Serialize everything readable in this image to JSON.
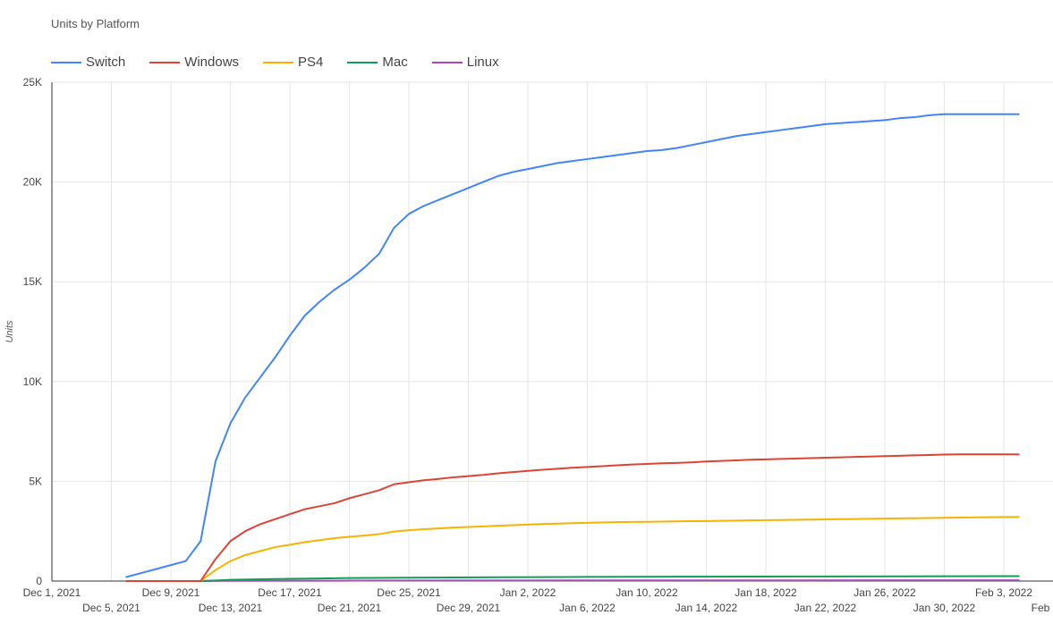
{
  "chart_data": {
    "type": "line",
    "title": "Units by Platform",
    "ylabel": "Units",
    "xlabel": "",
    "ylim": [
      0,
      25000
    ],
    "yticks": [
      0,
      5000,
      10000,
      15000,
      20000,
      25000
    ],
    "ytick_labels": [
      "0",
      "5K",
      "10K",
      "15K",
      "20K",
      "25K"
    ],
    "xlim": [
      "2021-12-01",
      "2022-02-07"
    ],
    "xticks_upper": [
      {
        "date": "2021-12-01",
        "label": "Dec 1, 2021"
      },
      {
        "date": "2021-12-09",
        "label": "Dec 9, 2021"
      },
      {
        "date": "2021-12-17",
        "label": "Dec 17, 2021"
      },
      {
        "date": "2021-12-25",
        "label": "Dec 25, 2021"
      },
      {
        "date": "2022-01-02",
        "label": "Jan 2, 2022"
      },
      {
        "date": "2022-01-10",
        "label": "Jan 10, 2022"
      },
      {
        "date": "2022-01-18",
        "label": "Jan 18, 2022"
      },
      {
        "date": "2022-01-26",
        "label": "Jan 26, 2022"
      },
      {
        "date": "2022-02-03",
        "label": "Feb 3, 2022"
      }
    ],
    "xticks_lower": [
      {
        "date": "2021-12-05",
        "label": "Dec 5, 2021"
      },
      {
        "date": "2021-12-13",
        "label": "Dec 13, 2021"
      },
      {
        "date": "2021-12-21",
        "label": "Dec 21, 2021"
      },
      {
        "date": "2021-12-29",
        "label": "Dec 29, 2021"
      },
      {
        "date": "2022-01-06",
        "label": "Jan 6, 2022"
      },
      {
        "date": "2022-01-14",
        "label": "Jan 14, 2022"
      },
      {
        "date": "2022-01-22",
        "label": "Jan 22, 2022"
      },
      {
        "date": "2022-01-30",
        "label": "Jan 30, 2022"
      },
      {
        "date": "2022-02-07",
        "label": "Feb"
      }
    ],
    "grid": true,
    "legend_position": "top-left",
    "series": [
      {
        "name": "Switch",
        "color": "#4285f4",
        "points": [
          [
            "2021-12-06",
            200
          ],
          [
            "2021-12-07",
            400
          ],
          [
            "2021-12-08",
            600
          ],
          [
            "2021-12-09",
            800
          ],
          [
            "2021-12-10",
            1000
          ],
          [
            "2021-12-11",
            2000
          ],
          [
            "2021-12-12",
            6000
          ],
          [
            "2021-12-13",
            7900
          ],
          [
            "2021-12-14",
            9200
          ],
          [
            "2021-12-15",
            10200
          ],
          [
            "2021-12-16",
            11200
          ],
          [
            "2021-12-17",
            12300
          ],
          [
            "2021-12-18",
            13300
          ],
          [
            "2021-12-19",
            14000
          ],
          [
            "2021-12-20",
            14600
          ],
          [
            "2021-12-21",
            15100
          ],
          [
            "2021-12-22",
            15700
          ],
          [
            "2021-12-23",
            16400
          ],
          [
            "2021-12-24",
            17700
          ],
          [
            "2021-12-25",
            18400
          ],
          [
            "2021-12-26",
            18800
          ],
          [
            "2021-12-27",
            19100
          ],
          [
            "2021-12-28",
            19400
          ],
          [
            "2021-12-29",
            19700
          ],
          [
            "2021-12-30",
            20000
          ],
          [
            "2021-12-31",
            20300
          ],
          [
            "2022-01-01",
            20500
          ],
          [
            "2022-01-02",
            20650
          ],
          [
            "2022-01-03",
            20800
          ],
          [
            "2022-01-04",
            20950
          ],
          [
            "2022-01-05",
            21050
          ],
          [
            "2022-01-06",
            21150
          ],
          [
            "2022-01-07",
            21250
          ],
          [
            "2022-01-08",
            21350
          ],
          [
            "2022-01-09",
            21450
          ],
          [
            "2022-01-10",
            21550
          ],
          [
            "2022-01-11",
            21600
          ],
          [
            "2022-01-12",
            21700
          ],
          [
            "2022-01-13",
            21850
          ],
          [
            "2022-01-14",
            22000
          ],
          [
            "2022-01-15",
            22150
          ],
          [
            "2022-01-16",
            22300
          ],
          [
            "2022-01-17",
            22400
          ],
          [
            "2022-01-18",
            22500
          ],
          [
            "2022-01-19",
            22600
          ],
          [
            "2022-01-20",
            22700
          ],
          [
            "2022-01-21",
            22800
          ],
          [
            "2022-01-22",
            22900
          ],
          [
            "2022-01-23",
            22950
          ],
          [
            "2022-01-24",
            23000
          ],
          [
            "2022-01-25",
            23050
          ],
          [
            "2022-01-26",
            23100
          ],
          [
            "2022-01-27",
            23200
          ],
          [
            "2022-01-28",
            23250
          ],
          [
            "2022-01-29",
            23350
          ],
          [
            "2022-01-30",
            23400
          ],
          [
            "2022-01-31",
            23400
          ],
          [
            "2022-02-01",
            23400
          ],
          [
            "2022-02-02",
            23400
          ],
          [
            "2022-02-03",
            23400
          ],
          [
            "2022-02-04",
            23400
          ]
        ]
      },
      {
        "name": "Windows",
        "color": "#db4437",
        "points": [
          [
            "2021-12-06",
            0
          ],
          [
            "2021-12-07",
            0
          ],
          [
            "2021-12-08",
            0
          ],
          [
            "2021-12-09",
            0
          ],
          [
            "2021-12-10",
            0
          ],
          [
            "2021-12-11",
            0
          ],
          [
            "2021-12-12",
            1100
          ],
          [
            "2021-12-13",
            2000
          ],
          [
            "2021-12-14",
            2500
          ],
          [
            "2021-12-15",
            2850
          ],
          [
            "2021-12-16",
            3100
          ],
          [
            "2021-12-17",
            3350
          ],
          [
            "2021-12-18",
            3600
          ],
          [
            "2021-12-19",
            3750
          ],
          [
            "2021-12-20",
            3900
          ],
          [
            "2021-12-21",
            4150
          ],
          [
            "2021-12-22",
            4350
          ],
          [
            "2021-12-23",
            4550
          ],
          [
            "2021-12-24",
            4850
          ],
          [
            "2021-12-25",
            4950
          ],
          [
            "2021-12-26",
            5050
          ],
          [
            "2021-12-27",
            5120
          ],
          [
            "2021-12-28",
            5200
          ],
          [
            "2021-12-29",
            5260
          ],
          [
            "2021-12-30",
            5320
          ],
          [
            "2021-12-31",
            5400
          ],
          [
            "2022-01-01",
            5460
          ],
          [
            "2022-01-02",
            5520
          ],
          [
            "2022-01-03",
            5580
          ],
          [
            "2022-01-04",
            5630
          ],
          [
            "2022-01-05",
            5680
          ],
          [
            "2022-01-06",
            5720
          ],
          [
            "2022-01-07",
            5760
          ],
          [
            "2022-01-08",
            5800
          ],
          [
            "2022-01-09",
            5840
          ],
          [
            "2022-01-10",
            5870
          ],
          [
            "2022-01-11",
            5900
          ],
          [
            "2022-01-12",
            5920
          ],
          [
            "2022-01-13",
            5950
          ],
          [
            "2022-01-14",
            5990
          ],
          [
            "2022-01-15",
            6020
          ],
          [
            "2022-01-16",
            6050
          ],
          [
            "2022-01-17",
            6080
          ],
          [
            "2022-01-18",
            6100
          ],
          [
            "2022-01-19",
            6120
          ],
          [
            "2022-01-20",
            6140
          ],
          [
            "2022-01-21",
            6160
          ],
          [
            "2022-01-22",
            6180
          ],
          [
            "2022-01-23",
            6200
          ],
          [
            "2022-01-24",
            6220
          ],
          [
            "2022-01-25",
            6240
          ],
          [
            "2022-01-26",
            6260
          ],
          [
            "2022-01-27",
            6280
          ],
          [
            "2022-01-28",
            6300
          ],
          [
            "2022-01-29",
            6320
          ],
          [
            "2022-01-30",
            6340
          ],
          [
            "2022-01-31",
            6350
          ],
          [
            "2022-02-01",
            6350
          ],
          [
            "2022-02-02",
            6350
          ],
          [
            "2022-02-03",
            6350
          ],
          [
            "2022-02-04",
            6350
          ]
        ]
      },
      {
        "name": "PS4",
        "color": "#f4b400",
        "points": [
          [
            "2021-12-06",
            0
          ],
          [
            "2021-12-07",
            0
          ],
          [
            "2021-12-08",
            0
          ],
          [
            "2021-12-09",
            0
          ],
          [
            "2021-12-10",
            0
          ],
          [
            "2021-12-11",
            0
          ],
          [
            "2021-12-12",
            550
          ],
          [
            "2021-12-13",
            1000
          ],
          [
            "2021-12-14",
            1300
          ],
          [
            "2021-12-15",
            1500
          ],
          [
            "2021-12-16",
            1700
          ],
          [
            "2021-12-17",
            1820
          ],
          [
            "2021-12-18",
            1950
          ],
          [
            "2021-12-19",
            2050
          ],
          [
            "2021-12-20",
            2150
          ],
          [
            "2021-12-21",
            2220
          ],
          [
            "2021-12-22",
            2280
          ],
          [
            "2021-12-23",
            2350
          ],
          [
            "2021-12-24",
            2480
          ],
          [
            "2021-12-25",
            2550
          ],
          [
            "2021-12-26",
            2600
          ],
          [
            "2021-12-27",
            2640
          ],
          [
            "2021-12-28",
            2680
          ],
          [
            "2021-12-29",
            2710
          ],
          [
            "2021-12-30",
            2740
          ],
          [
            "2021-12-31",
            2770
          ],
          [
            "2022-01-01",
            2800
          ],
          [
            "2022-01-02",
            2830
          ],
          [
            "2022-01-03",
            2860
          ],
          [
            "2022-01-04",
            2880
          ],
          [
            "2022-01-05",
            2900
          ],
          [
            "2022-01-06",
            2920
          ],
          [
            "2022-01-07",
            2940
          ],
          [
            "2022-01-08",
            2950
          ],
          [
            "2022-01-09",
            2960
          ],
          [
            "2022-01-10",
            2970
          ],
          [
            "2022-01-11",
            2980
          ],
          [
            "2022-01-12",
            2990
          ],
          [
            "2022-01-13",
            3000
          ],
          [
            "2022-01-14",
            3010
          ],
          [
            "2022-01-15",
            3020
          ],
          [
            "2022-01-16",
            3030
          ],
          [
            "2022-01-17",
            3040
          ],
          [
            "2022-01-18",
            3050
          ],
          [
            "2022-01-19",
            3060
          ],
          [
            "2022-01-20",
            3070
          ],
          [
            "2022-01-21",
            3080
          ],
          [
            "2022-01-22",
            3090
          ],
          [
            "2022-01-23",
            3100
          ],
          [
            "2022-01-24",
            3110
          ],
          [
            "2022-01-25",
            3120
          ],
          [
            "2022-01-26",
            3130
          ],
          [
            "2022-01-27",
            3140
          ],
          [
            "2022-01-28",
            3150
          ],
          [
            "2022-01-29",
            3160
          ],
          [
            "2022-01-30",
            3170
          ],
          [
            "2022-01-31",
            3180
          ],
          [
            "2022-02-01",
            3190
          ],
          [
            "2022-02-02",
            3200
          ],
          [
            "2022-02-03",
            3210
          ],
          [
            "2022-02-04",
            3210
          ]
        ]
      },
      {
        "name": "Mac",
        "color": "#0f9d58",
        "points": [
          [
            "2021-12-06",
            0
          ],
          [
            "2021-12-09",
            0
          ],
          [
            "2021-12-11",
            0
          ],
          [
            "2021-12-12",
            30
          ],
          [
            "2021-12-13",
            60
          ],
          [
            "2021-12-15",
            90
          ],
          [
            "2021-12-17",
            110
          ],
          [
            "2021-12-19",
            130
          ],
          [
            "2021-12-21",
            150
          ],
          [
            "2021-12-25",
            170
          ],
          [
            "2021-12-31",
            190
          ],
          [
            "2022-01-06",
            205
          ],
          [
            "2022-01-14",
            220
          ],
          [
            "2022-01-22",
            230
          ],
          [
            "2022-01-30",
            240
          ],
          [
            "2022-02-04",
            245
          ]
        ]
      },
      {
        "name": "Linux",
        "color": "#ab47bc",
        "points": [
          [
            "2021-12-06",
            0
          ],
          [
            "2021-12-11",
            0
          ],
          [
            "2021-12-13",
            10
          ],
          [
            "2021-12-21",
            20
          ],
          [
            "2022-01-02",
            30
          ],
          [
            "2022-01-18",
            35
          ],
          [
            "2022-02-04",
            40
          ]
        ]
      }
    ]
  }
}
